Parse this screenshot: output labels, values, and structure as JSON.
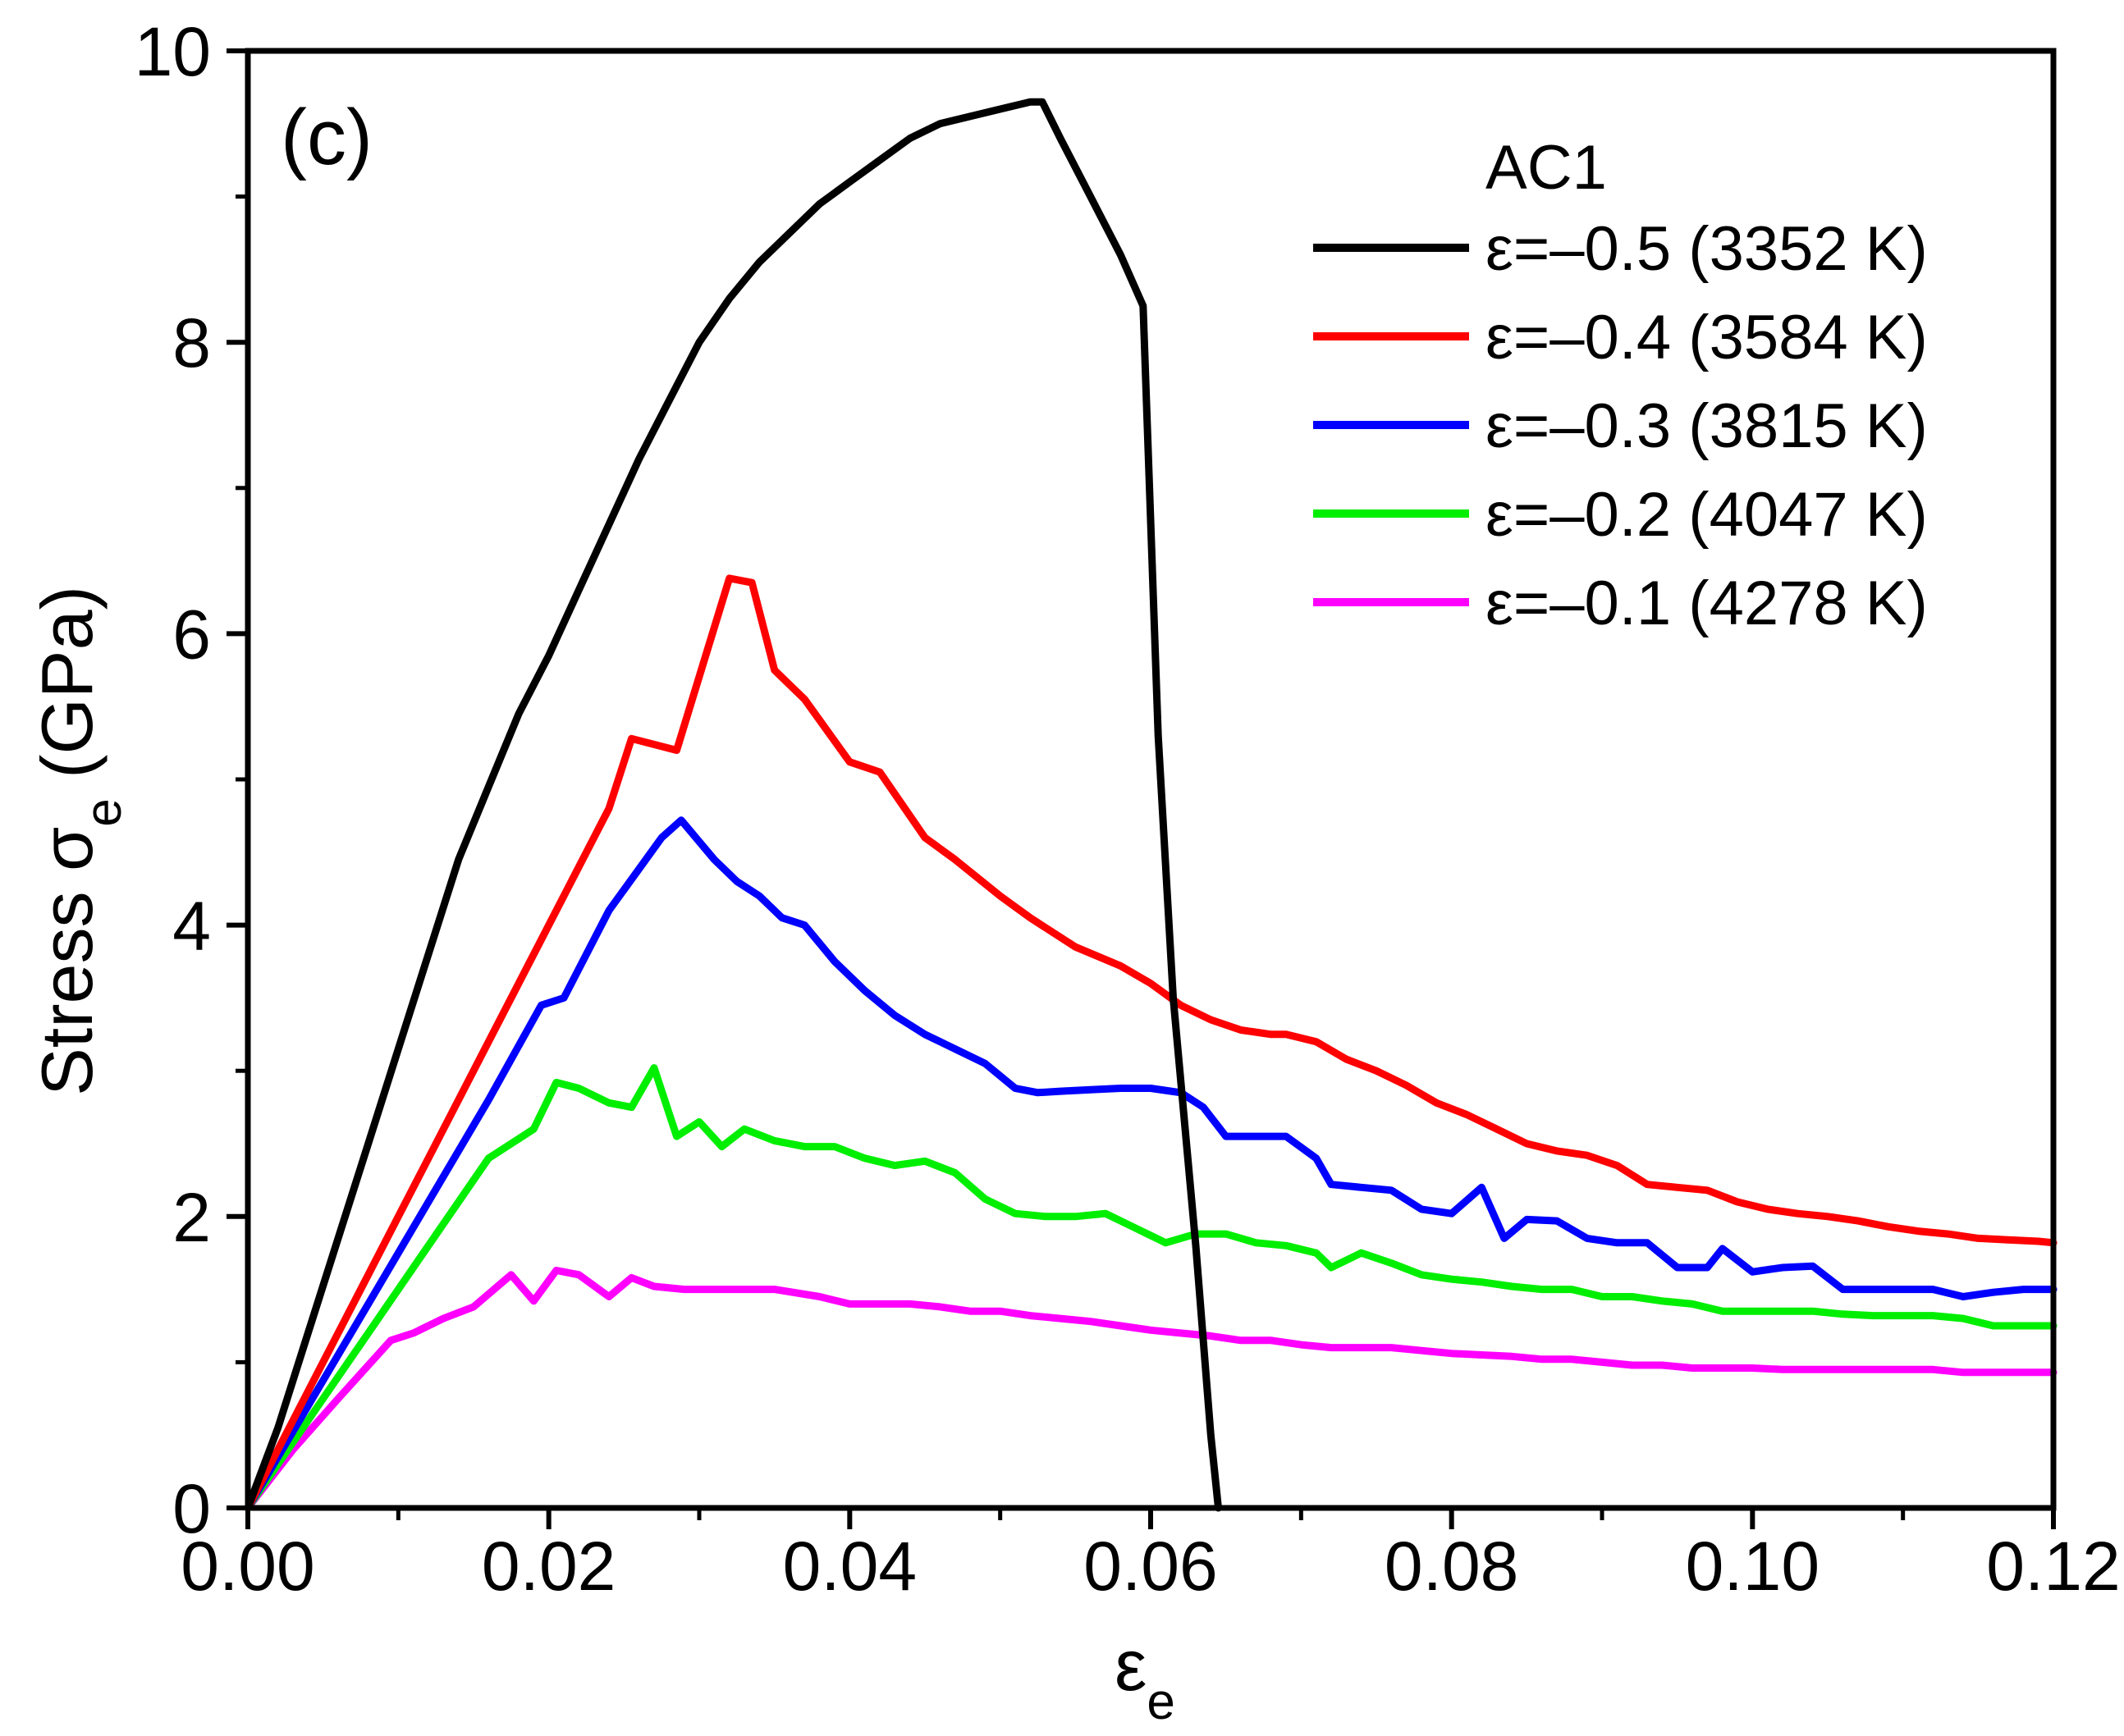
{
  "chart_data": {
    "type": "line",
    "panel_label": "(c)",
    "xlabel": {
      "main": "ε",
      "sub": "e"
    },
    "ylabel": {
      "main": "Stress σ",
      "sub": "e",
      "unit": " (GPa)"
    },
    "xlim": [
      0,
      0.12
    ],
    "ylim": [
      0,
      10
    ],
    "xticks": [
      0,
      0.02,
      0.04,
      0.06,
      0.08,
      0.1,
      0.12
    ],
    "xtick_labels": [
      "0.00",
      "0.02",
      "0.04",
      "0.06",
      "0.08",
      "0.10",
      "0.12"
    ],
    "yticks": [
      0,
      2,
      4,
      6,
      8,
      10
    ],
    "ytick_labels": [
      "0",
      "2",
      "4",
      "6",
      "8",
      "10"
    ],
    "legend_title": "AC1",
    "legend_position": "top-right",
    "series": [
      {
        "name": "ε=–0.5 (3352 K)",
        "color": "#000000",
        "x": [
          0,
          0.002,
          0.004,
          0.006,
          0.008,
          0.01,
          0.012,
          0.014,
          0.016,
          0.018,
          0.02,
          0.022,
          0.024,
          0.026,
          0.028,
          0.03,
          0.032,
          0.034,
          0.036,
          0.038,
          0.04,
          0.042,
          0.044,
          0.046,
          0.048,
          0.05,
          0.052,
          0.0528,
          0.054,
          0.056,
          0.058,
          0.0595,
          0.0605,
          0.0615,
          0.063,
          0.064,
          0.0645
        ],
        "y": [
          0,
          0.55,
          1.2,
          1.85,
          2.5,
          3.15,
          3.8,
          4.45,
          4.95,
          5.45,
          5.85,
          6.3,
          6.75,
          7.2,
          7.6,
          8.0,
          8.3,
          8.55,
          8.75,
          8.95,
          9.1,
          9.25,
          9.4,
          9.5,
          9.55,
          9.6,
          9.65,
          9.65,
          9.4,
          9.0,
          8.6,
          8.25,
          5.3,
          3.5,
          1.8,
          0.5,
          0
        ]
      },
      {
        "name": "ε=–0.4 (3584 K)",
        "color": "#ff0000",
        "x": [
          0,
          0.004,
          0.008,
          0.012,
          0.016,
          0.02,
          0.024,
          0.0255,
          0.0285,
          0.032,
          0.0335,
          0.035,
          0.037,
          0.04,
          0.042,
          0.045,
          0.047,
          0.05,
          0.052,
          0.055,
          0.058,
          0.06,
          0.062,
          0.064,
          0.066,
          0.068,
          0.069,
          0.071,
          0.073,
          0.075,
          0.077,
          0.079,
          0.081,
          0.083,
          0.085,
          0.087,
          0.089,
          0.091,
          0.093,
          0.095,
          0.097,
          0.099,
          0.101,
          0.103,
          0.105,
          0.107,
          0.109,
          0.111,
          0.113,
          0.115,
          0.117,
          0.119,
          0.12
        ],
        "y": [
          0,
          0.8,
          1.6,
          2.4,
          3.2,
          4.0,
          4.8,
          5.28,
          5.2,
          6.38,
          6.35,
          5.75,
          5.55,
          5.12,
          5.05,
          4.6,
          4.45,
          4.2,
          4.05,
          3.85,
          3.72,
          3.6,
          3.45,
          3.35,
          3.28,
          3.25,
          3.25,
          3.2,
          3.08,
          3.0,
          2.9,
          2.78,
          2.7,
          2.6,
          2.5,
          2.45,
          2.42,
          2.35,
          2.22,
          2.2,
          2.18,
          2.1,
          2.05,
          2.02,
          2.0,
          1.97,
          1.93,
          1.9,
          1.88,
          1.85,
          1.84,
          1.83,
          1.82
        ]
      },
      {
        "name": "ε=–0.3 (3815 K)",
        "color": "#0000ff",
        "x": [
          0,
          0.004,
          0.008,
          0.012,
          0.016,
          0.0195,
          0.021,
          0.024,
          0.0275,
          0.0288,
          0.031,
          0.0325,
          0.034,
          0.0355,
          0.037,
          0.039,
          0.041,
          0.043,
          0.045,
          0.047,
          0.049,
          0.051,
          0.0525,
          0.054,
          0.056,
          0.058,
          0.06,
          0.062,
          0.0635,
          0.065,
          0.067,
          0.069,
          0.071,
          0.072,
          0.074,
          0.076,
          0.078,
          0.08,
          0.082,
          0.0835,
          0.085,
          0.087,
          0.089,
          0.091,
          0.093,
          0.095,
          0.097,
          0.098,
          0.1,
          0.102,
          0.104,
          0.106,
          0.108,
          0.11,
          0.112,
          0.114,
          0.116,
          0.118,
          0.12
        ],
        "y": [
          0,
          0.7,
          1.4,
          2.1,
          2.8,
          3.45,
          3.5,
          4.1,
          4.6,
          4.72,
          4.45,
          4.3,
          4.2,
          4.05,
          4.0,
          3.75,
          3.55,
          3.38,
          3.25,
          3.15,
          3.05,
          2.88,
          2.85,
          2.86,
          2.87,
          2.88,
          2.88,
          2.85,
          2.75,
          2.55,
          2.55,
          2.55,
          2.4,
          2.22,
          2.2,
          2.18,
          2.05,
          2.02,
          2.2,
          1.85,
          1.98,
          1.97,
          1.85,
          1.82,
          1.82,
          1.65,
          1.65,
          1.78,
          1.62,
          1.65,
          1.66,
          1.5,
          1.5,
          1.5,
          1.5,
          1.45,
          1.48,
          1.5,
          1.5
        ]
      },
      {
        "name": "ε=–0.2 (4047 K)",
        "color": "#00ee00",
        "x": [
          0,
          0.004,
          0.008,
          0.012,
          0.016,
          0.019,
          0.0205,
          0.022,
          0.024,
          0.0255,
          0.027,
          0.0285,
          0.03,
          0.0315,
          0.033,
          0.035,
          0.037,
          0.039,
          0.041,
          0.043,
          0.045,
          0.047,
          0.049,
          0.051,
          0.053,
          0.055,
          0.057,
          0.059,
          0.061,
          0.063,
          0.065,
          0.067,
          0.069,
          0.071,
          0.072,
          0.074,
          0.076,
          0.078,
          0.08,
          0.082,
          0.084,
          0.086,
          0.088,
          0.09,
          0.092,
          0.094,
          0.096,
          0.098,
          0.1,
          0.102,
          0.104,
          0.106,
          0.108,
          0.11,
          0.112,
          0.114,
          0.116,
          0.118,
          0.12
        ],
        "y": [
          0,
          0.6,
          1.2,
          1.8,
          2.4,
          2.6,
          2.92,
          2.88,
          2.78,
          2.75,
          3.02,
          2.55,
          2.65,
          2.48,
          2.6,
          2.52,
          2.48,
          2.48,
          2.4,
          2.35,
          2.38,
          2.3,
          2.12,
          2.02,
          2.0,
          2.0,
          2.02,
          1.92,
          1.82,
          1.88,
          1.88,
          1.82,
          1.8,
          1.75,
          1.65,
          1.75,
          1.68,
          1.6,
          1.57,
          1.55,
          1.52,
          1.5,
          1.5,
          1.45,
          1.45,
          1.42,
          1.4,
          1.35,
          1.35,
          1.35,
          1.35,
          1.33,
          1.32,
          1.32,
          1.32,
          1.3,
          1.25,
          1.25,
          1.25
        ]
      },
      {
        "name": "ε=–0.1 (4278 K)",
        "color": "#ff00ff",
        "x": [
          0,
          0.003,
          0.006,
          0.0095,
          0.011,
          0.013,
          0.015,
          0.0175,
          0.019,
          0.0205,
          0.022,
          0.024,
          0.0255,
          0.027,
          0.029,
          0.031,
          0.033,
          0.035,
          0.038,
          0.04,
          0.042,
          0.044,
          0.046,
          0.048,
          0.05,
          0.052,
          0.054,
          0.056,
          0.058,
          0.06,
          0.062,
          0.064,
          0.066,
          0.068,
          0.07,
          0.072,
          0.074,
          0.076,
          0.078,
          0.08,
          0.082,
          0.084,
          0.086,
          0.088,
          0.09,
          0.092,
          0.094,
          0.096,
          0.098,
          0.1,
          0.102,
          0.104,
          0.106,
          0.108,
          0.11,
          0.112,
          0.114,
          0.116,
          0.118,
          0.12
        ],
        "y": [
          0,
          0.4,
          0.75,
          1.15,
          1.2,
          1.3,
          1.38,
          1.6,
          1.42,
          1.63,
          1.6,
          1.45,
          1.58,
          1.52,
          1.5,
          1.5,
          1.5,
          1.5,
          1.45,
          1.4,
          1.4,
          1.4,
          1.38,
          1.35,
          1.35,
          1.32,
          1.3,
          1.28,
          1.25,
          1.22,
          1.2,
          1.18,
          1.15,
          1.15,
          1.12,
          1.1,
          1.1,
          1.1,
          1.08,
          1.06,
          1.05,
          1.04,
          1.02,
          1.02,
          1.0,
          0.98,
          0.98,
          0.96,
          0.96,
          0.96,
          0.95,
          0.95,
          0.95,
          0.95,
          0.95,
          0.95,
          0.93,
          0.93,
          0.93,
          0.93
        ]
      }
    ]
  }
}
